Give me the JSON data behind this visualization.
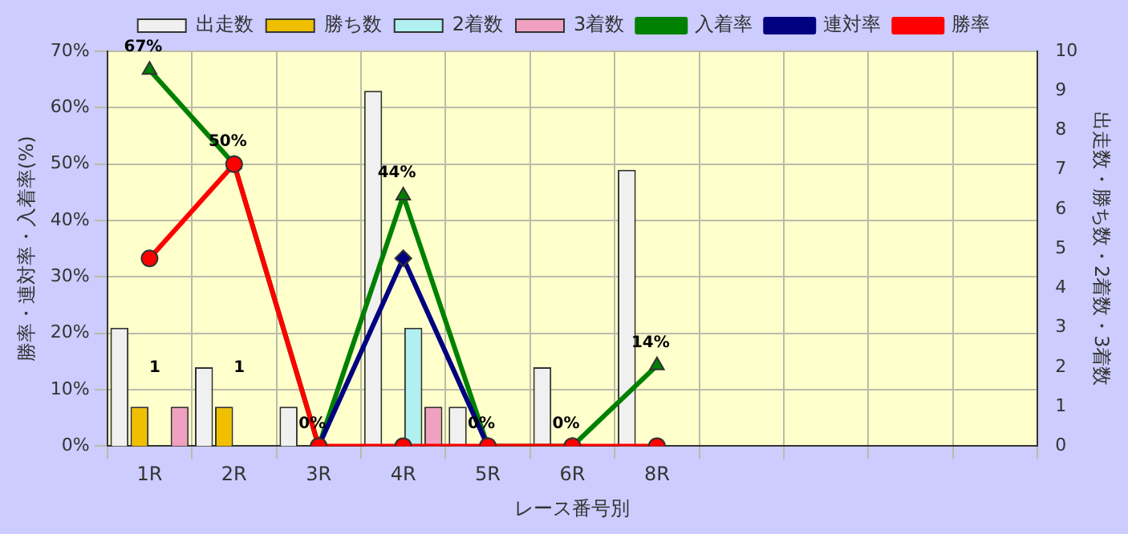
{
  "chart_data": {
    "type": "bar",
    "categories": [
      "1R",
      "2R",
      "3R",
      "4R",
      "5R",
      "6R",
      "8R",
      null,
      null,
      null,
      null
    ],
    "xlabel": "レース番号別",
    "ylabel": "勝率・連対率・入着率(%)",
    "y2label": "出走数・勝ち数・2着数・3着数",
    "ylim": [
      0,
      70
    ],
    "yticks": [
      {
        "value": 0,
        "label": "0%"
      },
      {
        "value": 10,
        "label": "10%"
      },
      {
        "value": 20,
        "label": "20%"
      },
      {
        "value": 30,
        "label": "30%"
      },
      {
        "value": 40,
        "label": "40%"
      },
      {
        "value": 50,
        "label": "50%"
      },
      {
        "value": 60,
        "label": "60%"
      },
      {
        "value": 70,
        "label": "70%"
      }
    ],
    "y2lim": [
      0,
      10
    ],
    "y2ticks": [
      0,
      1,
      2,
      3,
      4,
      5,
      6,
      7,
      8,
      9,
      10
    ],
    "grid": true,
    "legend": "top",
    "series": [
      {
        "name": "出走数",
        "axis": "y2",
        "color": "#f0f0f0",
        "values": [
          3,
          2,
          1,
          9,
          1,
          2,
          7,
          null,
          null,
          null,
          null
        ]
      },
      {
        "name": "勝ち数",
        "axis": "y2",
        "color": "#f0c000",
        "values": [
          1,
          1,
          0,
          0,
          0,
          0,
          0,
          null,
          null,
          null,
          null
        ],
        "value_labels": [
          "1",
          "1",
          null,
          null,
          null,
          null,
          null,
          null,
          null,
          null,
          null
        ]
      },
      {
        "name": "2着数",
        "axis": "y2",
        "color": "#b0f0f0",
        "values": [
          0,
          0,
          0,
          3,
          0,
          0,
          0,
          null,
          null,
          null,
          null
        ]
      },
      {
        "name": "3着数",
        "axis": "y2",
        "color": "#f0a0c0",
        "values": [
          1,
          0,
          0,
          1,
          0,
          0,
          0,
          null,
          null,
          null,
          null
        ]
      },
      {
        "name": "入着率",
        "type": "line",
        "color": "#008000",
        "marker": "triangle",
        "values": [
          66.7,
          50,
          0,
          44.4,
          0,
          0,
          14.3,
          null,
          null,
          null,
          null
        ],
        "value_labels": [
          "67%",
          "50%",
          "0%",
          "44%",
          "0%",
          "0%",
          "14%",
          null,
          null,
          null,
          null
        ]
      },
      {
        "name": "連対率",
        "type": "line",
        "color": "#000080",
        "marker": "diamond",
        "values": [
          null,
          null,
          0,
          33.3,
          0,
          null,
          null,
          null,
          null,
          null,
          null
        ]
      },
      {
        "name": "勝率",
        "type": "line",
        "color": "#ff0000",
        "marker": "circle",
        "values": [
          33.3,
          50,
          0,
          0,
          0,
          0,
          0,
          null,
          null,
          null,
          null
        ]
      }
    ]
  }
}
